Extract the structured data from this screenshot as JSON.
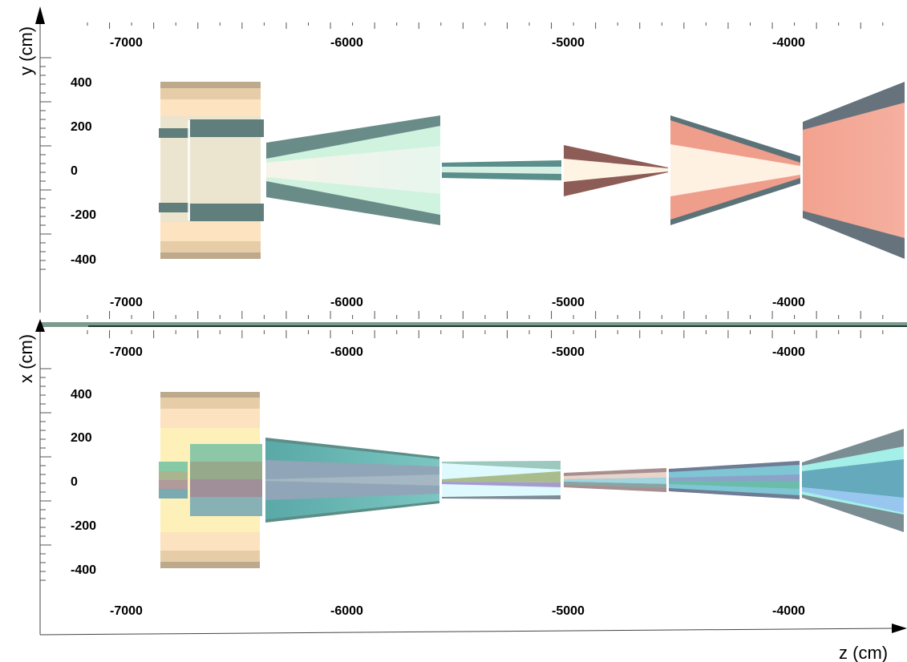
{
  "panels": [
    {
      "id": "top",
      "y_axis_title": "y (cm)",
      "y_ticks": [
        "400",
        "200",
        "0",
        "-200",
        "-400"
      ],
      "x_ticks_top": [
        "-7000",
        "-6000",
        "-5000",
        "-4000"
      ],
      "x_ticks_bottom": [
        "-7000",
        "-6000",
        "-5000",
        "-4000"
      ]
    },
    {
      "id": "bottom",
      "y_axis_title": "x (cm)",
      "y_ticks": [
        "400",
        "200",
        "0",
        "-200",
        "-400"
      ],
      "x_ticks_top": [
        "-7000",
        "-6000",
        "-5000",
        "-4000"
      ],
      "x_ticks_bottom": [
        "-7000",
        "-6000",
        "-5000",
        "-4000"
      ]
    }
  ],
  "x_axis_title": "z (cm)",
  "colors": {
    "beige": "#f3e3c4",
    "tan": "#c8b28f",
    "peach": "#fdd9b0",
    "dark_slate": "#5e7a78",
    "mint": "#c9f0dc",
    "mint_light": "#e6f8ef",
    "cream": "#fff4e3",
    "brown": "#8d5c56",
    "salmon": "#f2a595",
    "slate_gray": "#66737d",
    "teal": "#6fb4b0",
    "light_yellow": "#fdf2bc",
    "cyan_light": "#dffaff",
    "blue_gray": "#8e9fbb"
  }
}
